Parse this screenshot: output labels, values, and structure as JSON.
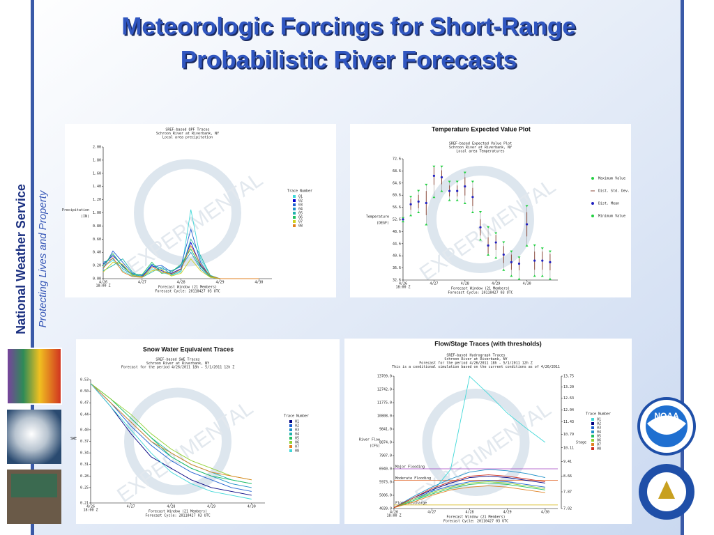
{
  "slide": {
    "title": [
      "Meteorologic Forcings for Short-Range",
      "Probabilistic River Forecasts"
    ],
    "organization": "National Weather Service",
    "tagline": "Protecting Lives and Property",
    "logo_text": "NOAA",
    "watermark": "EXPERIMENTAL"
  },
  "chart_data": [
    {
      "type": "line",
      "subtitle": [
        "SREF-based QPF Traces",
        "Schroon River at Riverbank, NY",
        "Local area precipitation"
      ],
      "ylabel": [
        "Precipitation",
        "(IN)"
      ],
      "xlabel": [
        "Forecast Window (21 Members)",
        "Forecast Cycle: 20110427 03 UTC"
      ],
      "x_start_label": "18:00 Z",
      "x": [
        0,
        6,
        12,
        18,
        24,
        30,
        36,
        42,
        48,
        54,
        60,
        66,
        72,
        78,
        84,
        90,
        96
      ],
      "xlim": [
        0,
        104
      ],
      "xticks": [
        {
          "value": 0,
          "label": "4/26"
        },
        {
          "value": 24,
          "label": "4/27"
        },
        {
          "value": 48,
          "label": "4/28"
        },
        {
          "value": 72,
          "label": "4/29"
        },
        {
          "value": 96,
          "label": "4/30"
        }
      ],
      "ylim": [
        0,
        2
      ],
      "yticks": [
        {
          "value": 0,
          "label": "0.00"
        },
        {
          "value": 0.2,
          "label": "0.20"
        },
        {
          "value": 0.4,
          "label": "0.40"
        },
        {
          "value": 0.6,
          "label": "0.60"
        },
        {
          "value": 0.8,
          "label": "0.80"
        },
        {
          "value": 1,
          "label": "1.00"
        },
        {
          "value": 1.2,
          "label": "1.20"
        },
        {
          "value": 1.4,
          "label": "1.40"
        },
        {
          "value": 1.6,
          "label": "1.60"
        },
        {
          "value": 1.8,
          "label": "1.80"
        },
        {
          "value": 2,
          "label": "2.00"
        }
      ],
      "legend_title": "Trace Number",
      "series": [
        {
          "name": "01",
          "color": "#40d8d8",
          "values": [
            0.18,
            0.28,
            0.12,
            0.04,
            0.02,
            0.15,
            0.1,
            0.05,
            0.1,
            1.05,
            0.3,
            0.05,
            0,
            0,
            0,
            0,
            0
          ]
        },
        {
          "name": "02",
          "color": "#0000cd",
          "values": [
            0.22,
            0.35,
            0.2,
            0.05,
            0.03,
            0.2,
            0.12,
            0.08,
            0.15,
            0.55,
            0.2,
            0.04,
            0,
            0,
            0,
            0,
            0
          ]
        },
        {
          "name": "03",
          "color": "#1e5fd0",
          "values": [
            0.15,
            0.42,
            0.25,
            0.08,
            0.05,
            0.18,
            0.2,
            0.1,
            0.2,
            0.75,
            0.25,
            0.03,
            0,
            0,
            0,
            0,
            0
          ]
        },
        {
          "name": "04",
          "color": "#1e90c8",
          "values": [
            0.25,
            0.3,
            0.15,
            0.06,
            0.04,
            0.22,
            0.15,
            0.12,
            0.18,
            0.4,
            0.15,
            0.02,
            0,
            0,
            0,
            0,
            0
          ]
        },
        {
          "name": "05",
          "color": "#20b2aa",
          "values": [
            0.12,
            0.2,
            0.3,
            0.1,
            0.02,
            0.1,
            0.18,
            0.06,
            0.12,
            0.6,
            0.35,
            0.05,
            0,
            0,
            0,
            0,
            0
          ]
        },
        {
          "name": "06",
          "color": "#20c060",
          "values": [
            0.2,
            0.38,
            0.18,
            0.07,
            0.06,
            0.25,
            0.08,
            0.1,
            0.22,
            0.45,
            0.18,
            0.03,
            0,
            0,
            0,
            0,
            0
          ]
        },
        {
          "name": "07",
          "color": "#d0d020",
          "values": [
            0.1,
            0.25,
            0.22,
            0.05,
            0.03,
            0.12,
            0.14,
            0.04,
            0.08,
            0.3,
            0.12,
            0.02,
            0,
            0,
            0,
            0,
            0
          ]
        },
        {
          "name": "08",
          "color": "#e08020",
          "values": [
            0.16,
            0.32,
            0.1,
            0.03,
            0.02,
            0.18,
            0.1,
            0.07,
            0.14,
            0.5,
            0.22,
            0.04,
            0,
            0,
            0,
            0,
            0
          ]
        }
      ]
    },
    {
      "type": "errorbar",
      "title": "Temperature Expected Value Plot",
      "subtitle": [
        "SREF-based Expected Value Plot",
        "Schroon River at Riverbank, NY",
        "Local area Temperatures"
      ],
      "ylabel": [
        "Temperature",
        "(DEGF)"
      ],
      "xlabel": [
        "Forecast Window (21 Members)",
        "Forecast Cycle: 20110427 03 UTC"
      ],
      "x_start_label": "18:00 Z",
      "x": [
        0,
        3,
        6,
        9,
        12,
        15,
        18,
        21,
        24,
        27,
        30,
        33,
        36,
        39,
        42,
        45,
        48,
        51,
        54,
        57
      ],
      "xlim": [
        0,
        60
      ],
      "xticks": [
        {
          "value": 0,
          "label": "4/26"
        },
        {
          "value": 12,
          "label": "4/27"
        },
        {
          "value": 24,
          "label": "4/28"
        },
        {
          "value": 36,
          "label": "4/29"
        },
        {
          "value": 48,
          "label": "4/30"
        }
      ],
      "ylim": [
        32.6,
        72.6
      ],
      "yticks": [
        32.6,
        36.6,
        40.6,
        44.6,
        48.6,
        52.6,
        56.6,
        60.6,
        64.6,
        68.6,
        72.6
      ],
      "series": [
        {
          "name": "Maximum Value",
          "color": "#20d040",
          "values": [
            53,
            60,
            62,
            64,
            70,
            70,
            65,
            65,
            68,
            65,
            55,
            50,
            48,
            45,
            42,
            40,
            57,
            44,
            43,
            42
          ]
        },
        {
          "name": "Dist. Std. Dev.",
          "color": "#8b4a3a",
          "values": [
            0.3,
            1.8,
            2.2,
            4,
            3,
            2.3,
            1.8,
            1.8,
            3,
            3,
            2.7,
            2.7,
            2.5,
            2.8,
            2.5,
            2.2,
            4,
            3,
            3,
            2.7
          ]
        },
        {
          "name": "Dist. Mean",
          "color": "#2020c0",
          "values": [
            52.6,
            57.6,
            58.5,
            58,
            67,
            66.5,
            62,
            62,
            63.5,
            60,
            50,
            44,
            45,
            41,
            38.5,
            38,
            51,
            39,
            39,
            38.5
          ]
        },
        {
          "name": "Minimum Value",
          "color": "#20d040",
          "values": [
            52,
            54,
            55,
            51,
            60,
            62,
            59,
            59,
            58,
            55,
            46,
            41,
            40,
            36,
            34,
            33,
            44,
            34,
            34,
            33
          ]
        }
      ]
    },
    {
      "type": "line",
      "title": "Snow Water Equivalent Traces",
      "subtitle": [
        "SREF-based SWE Traces",
        "Schroon River at Riverbank, NY",
        "Forecast for the period 4/26/2011 18h - 5/1/2011 12h Z"
      ],
      "ylabel": [
        "SWE"
      ],
      "xlabel": [
        "Forecast Window (21 Members)",
        "Forecast Cycle: 20110427 03 UTC"
      ],
      "x_start_label": "18:00 Z",
      "x": [
        0,
        12,
        24,
        36,
        48,
        60,
        72,
        84,
        96
      ],
      "xlim": [
        0,
        104
      ],
      "xticks": [
        {
          "value": 0,
          "label": "4/26"
        },
        {
          "value": 24,
          "label": "4/27"
        },
        {
          "value": 48,
          "label": "4/28"
        },
        {
          "value": 72,
          "label": "4/29"
        },
        {
          "value": 96,
          "label": "4/30"
        }
      ],
      "ylim": [
        0.21,
        0.53
      ],
      "yticks": [
        0.21,
        0.25,
        0.28,
        0.31,
        0.34,
        0.37,
        {
          "value": 0.4,
          "label": "0.40"
        },
        0.44,
        0.47,
        {
          "value": 0.5,
          "label": "0.50"
        },
        0.53
      ],
      "legend_title": "Trace Number",
      "series": [
        {
          "name": "01",
          "color": "#000080",
          "values": [
            0.52,
            0.46,
            0.39,
            0.33,
            0.3,
            0.27,
            0.25,
            0.24,
            0.23
          ]
        },
        {
          "name": "02",
          "color": "#1e5fd0",
          "values": [
            0.52,
            0.47,
            0.41,
            0.36,
            0.32,
            0.29,
            0.27,
            0.25,
            0.24
          ]
        },
        {
          "name": "03",
          "color": "#1e90c8",
          "values": [
            0.52,
            0.47,
            0.42,
            0.37,
            0.33,
            0.3,
            0.28,
            0.26,
            0.25
          ]
        },
        {
          "name": "04",
          "color": "#20b2aa",
          "values": [
            0.52,
            0.48,
            0.43,
            0.38,
            0.34,
            0.31,
            0.29,
            0.27,
            0.26
          ]
        },
        {
          "name": "05",
          "color": "#20c060",
          "values": [
            0.52,
            0.48,
            0.43,
            0.38,
            0.33,
            0.3,
            0.28,
            0.27,
            0.26
          ]
        },
        {
          "name": "06",
          "color": "#90d030",
          "values": [
            0.52,
            0.48,
            0.44,
            0.39,
            0.35,
            0.32,
            0.3,
            0.28,
            0.27
          ]
        },
        {
          "name": "07",
          "color": "#e08020",
          "values": [
            0.52,
            0.47,
            0.42,
            0.37,
            0.34,
            0.31,
            0.29,
            0.28,
            0.27
          ]
        },
        {
          "name": "08",
          "color": "#40d8d8",
          "values": [
            0.52,
            0.46,
            0.4,
            0.34,
            0.29,
            0.26,
            0.24,
            0.23,
            0.22
          ]
        }
      ]
    },
    {
      "type": "line",
      "title": "Flow/Stage Traces (with thresholds)",
      "subtitle": [
        "SREF-based Hydrograph Traces",
        "Schroon River at Riverbank, NY",
        "Forecast for the period 4/26/2011 18h - 5/1/2011 12h Z",
        "This is a conditional simulation based on the current conditions as of 4/26/2011"
      ],
      "ylabel": [
        "River Flow",
        "(CFS)"
      ],
      "y2label": [
        "Stage"
      ],
      "xlabel": [
        "Forecast Window (21 Members)",
        "Forecast Cycle: 20110427 03 UTC"
      ],
      "x_start_label": "18:00 Z",
      "x": [
        0,
        12,
        24,
        36,
        48,
        60,
        72,
        84,
        96
      ],
      "xlim": [
        0,
        104
      ],
      "xticks": [
        {
          "value": 0,
          "label": "4/26"
        },
        {
          "value": 24,
          "label": "4/27"
        },
        {
          "value": 48,
          "label": "4/28"
        },
        {
          "value": 72,
          "label": "4/29"
        },
        {
          "value": 96,
          "label": "4/30"
        }
      ],
      "ylim": [
        4039,
        13709
      ],
      "yticks": [
        {
          "value": 4039,
          "label": "4039.0"
        },
        {
          "value": 5006,
          "label": "5006.0"
        },
        {
          "value": 5973,
          "label": "5973.0"
        },
        {
          "value": 6940,
          "label": "6940.0"
        },
        {
          "value": 7907,
          "label": "7907.0"
        },
        {
          "value": 8874,
          "label": "8874.0"
        },
        {
          "value": 9841,
          "label": "9841.0"
        },
        {
          "value": 10808,
          "label": "10808.0"
        },
        {
          "value": 11775,
          "label": "11775.0"
        },
        {
          "value": 12742,
          "label": "12742.0"
        },
        {
          "value": 13709,
          "label": "13709.0"
        }
      ],
      "y2lim": [
        7.02,
        13.75
      ],
      "y2ticks": [
        7.02,
        7.87,
        8.66,
        9.41,
        10.11,
        10.79,
        11.43,
        12.04,
        12.63,
        {
          "value": 13.2,
          "label": "13.20"
        },
        13.75
      ],
      "thresholds": [
        {
          "name": "Major Flooding",
          "value": 6940,
          "color": "#a040c0"
        },
        {
          "name": "Moderate Flooding",
          "value": 6100,
          "color": "#e06020"
        },
        {
          "name": "Flood Discharge",
          "value": 4300,
          "color": "#d0b000"
        }
      ],
      "legend_title": "Trace Number",
      "series": [
        {
          "name": "01",
          "color": "#40d8d8",
          "values": [
            4100,
            4600,
            5200,
            6900,
            13700,
            12400,
            11000,
            9900,
            8874
          ]
        },
        {
          "name": "02",
          "color": "#000080",
          "values": [
            4100,
            4800,
            5400,
            5900,
            6300,
            6400,
            6300,
            6100,
            5900
          ]
        },
        {
          "name": "03",
          "color": "#1e5fd0",
          "values": [
            4100,
            4700,
            5300,
            5700,
            6000,
            6100,
            6000,
            5800,
            5600
          ]
        },
        {
          "name": "04",
          "color": "#1e90c8",
          "values": [
            4100,
            4900,
            5600,
            6200,
            6700,
            6900,
            6800,
            6600,
            6300
          ]
        },
        {
          "name": "05",
          "color": "#20c060",
          "values": [
            4100,
            4600,
            5100,
            5500,
            5800,
            5900,
            5800,
            5600,
            5400
          ]
        },
        {
          "name": "06",
          "color": "#90d030",
          "values": [
            4100,
            4700,
            5200,
            5600,
            5900,
            6000,
            5900,
            5700,
            5500
          ]
        },
        {
          "name": "07",
          "color": "#e08020",
          "values": [
            4100,
            4500,
            5000,
            5400,
            5600,
            5700,
            5600,
            5400,
            5200
          ]
        },
        {
          "name": "08",
          "color": "#d03020",
          "values": [
            4100,
            4800,
            5500,
            6000,
            6400,
            6500,
            6400,
            6200,
            6000
          ]
        }
      ]
    }
  ]
}
